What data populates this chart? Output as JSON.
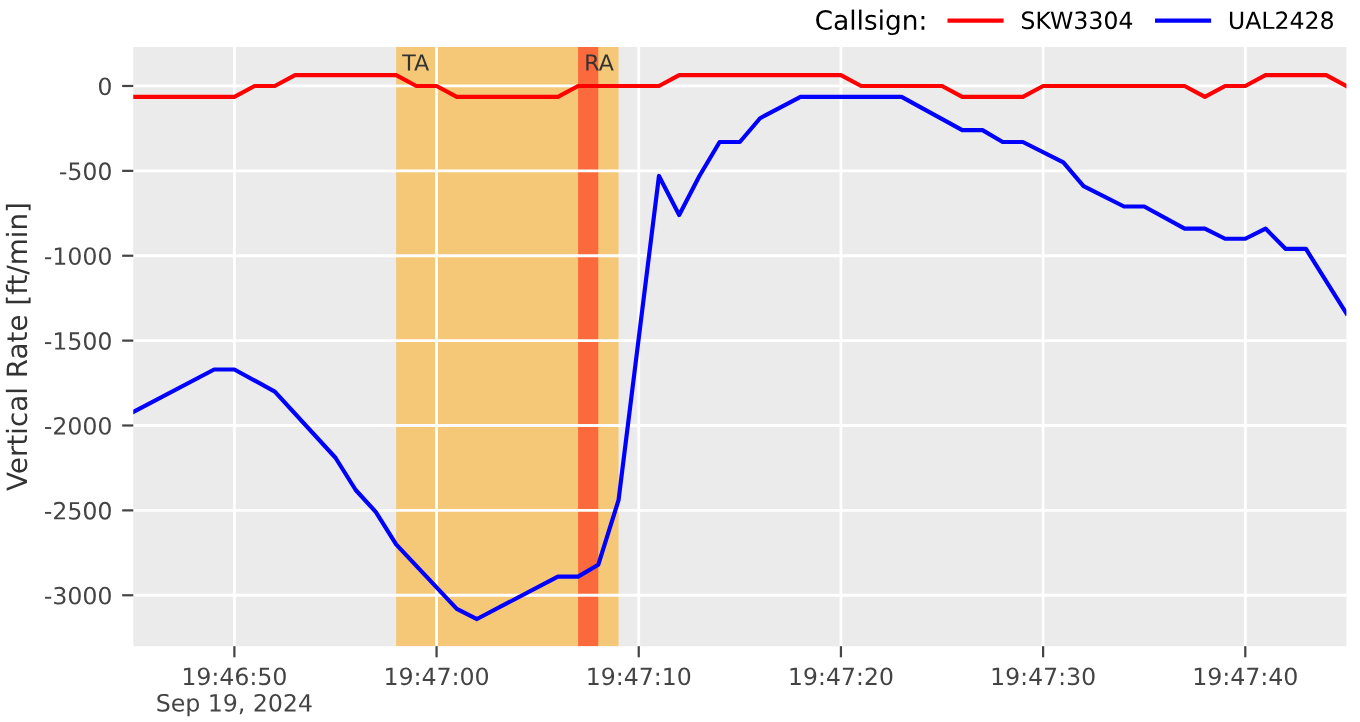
{
  "chart_data": {
    "type": "line",
    "ylabel": "Vertical Rate [ft/min]",
    "legend_title": "Callsign:",
    "legend": "top right",
    "grid": true,
    "line_style": "solid",
    "marker": "none",
    "xlim": [
      "2024-09-19T19:46:45",
      "2024-09-19T19:47:45"
    ],
    "xticks": [
      {
        "value": "2024-09-19T19:46:50",
        "label": "19:46:50\nSep 19, 2024"
      },
      {
        "value": "2024-09-19T19:47:00",
        "label": "19:47:00"
      },
      {
        "value": "2024-09-19T19:47:10",
        "label": "19:47:10"
      },
      {
        "value": "2024-09-19T19:47:20",
        "label": "19:47:20"
      },
      {
        "value": "2024-09-19T19:47:30",
        "label": "19:47:30"
      },
      {
        "value": "2024-09-19T19:47:40",
        "label": "19:47:40"
      }
    ],
    "ylim": [
      -3300,
      230
    ],
    "yticks": [
      -3000,
      -2500,
      -2000,
      -1500,
      -1000,
      -500,
      0
    ],
    "bands": [
      {
        "axis": "x",
        "from": "2024-09-19T19:46:58",
        "to": "2024-09-19T19:47:09",
        "label": "TA",
        "color": "#f5c878"
      },
      {
        "axis": "x",
        "from": "2024-09-19T19:47:07",
        "to": "2024-09-19T19:47:08",
        "label": "RA",
        "color": "#fb6a3c"
      }
    ],
    "series": [
      {
        "name": "SKW3304",
        "color": "#ff0000",
        "x": [
          "2024-09-19T19:46:45",
          "2024-09-19T19:46:50",
          "2024-09-19T19:46:51",
          "2024-09-19T19:46:52",
          "2024-09-19T19:46:53",
          "2024-09-19T19:46:58",
          "2024-09-19T19:46:59",
          "2024-09-19T19:47:00",
          "2024-09-19T19:47:01",
          "2024-09-19T19:47:06",
          "2024-09-19T19:47:07",
          "2024-09-19T19:47:11",
          "2024-09-19T19:47:12",
          "2024-09-19T19:47:20",
          "2024-09-19T19:47:21",
          "2024-09-19T19:47:25",
          "2024-09-19T19:47:26",
          "2024-09-19T19:47:29",
          "2024-09-19T19:47:30",
          "2024-09-19T19:47:37",
          "2024-09-19T19:47:38",
          "2024-09-19T19:47:39",
          "2024-09-19T19:47:40",
          "2024-09-19T19:47:41",
          "2024-09-19T19:47:44",
          "2024-09-19T19:47:45"
        ],
        "values": [
          -64,
          -64,
          0,
          0,
          64,
          64,
          0,
          0,
          -64,
          -64,
          0,
          0,
          64,
          64,
          0,
          0,
          -64,
          -64,
          0,
          0,
          -64,
          0,
          0,
          64,
          64,
          0
        ]
      },
      {
        "name": "UAL2428",
        "color": "#0000ff",
        "x": [
          "2024-09-19T19:46:45",
          "2024-09-19T19:46:49",
          "2024-09-19T19:46:50",
          "2024-09-19T19:46:52",
          "2024-09-19T19:46:55",
          "2024-09-19T19:46:56",
          "2024-09-19T19:46:57",
          "2024-09-19T19:46:58",
          "2024-09-19T19:47:01",
          "2024-09-19T19:47:02",
          "2024-09-19T19:47:06",
          "2024-09-19T19:47:07",
          "2024-09-19T19:47:08",
          "2024-09-19T19:47:09",
          "2024-09-19T19:47:11",
          "2024-09-19T19:47:12",
          "2024-09-19T19:47:13",
          "2024-09-19T19:47:14",
          "2024-09-19T19:47:15",
          "2024-09-19T19:47:16",
          "2024-09-19T19:47:18",
          "2024-09-19T19:47:23",
          "2024-09-19T19:47:26",
          "2024-09-19T19:47:27",
          "2024-09-19T19:47:28",
          "2024-09-19T19:47:29",
          "2024-09-19T19:47:31",
          "2024-09-19T19:47:32",
          "2024-09-19T19:47:34",
          "2024-09-19T19:47:35",
          "2024-09-19T19:47:37",
          "2024-09-19T19:47:38",
          "2024-09-19T19:47:39",
          "2024-09-19T19:47:40",
          "2024-09-19T19:47:41",
          "2024-09-19T19:47:42",
          "2024-09-19T19:47:43",
          "2024-09-19T19:47:45"
        ],
        "values": [
          -1920,
          -1670,
          -1670,
          -1800,
          -2190,
          -2380,
          -2510,
          -2700,
          -3080,
          -3140,
          -2890,
          -2890,
          -2820,
          -2440,
          -530,
          -760,
          -530,
          -330,
          -330,
          -190,
          -64,
          -64,
          -260,
          -260,
          -330,
          -330,
          -450,
          -590,
          -710,
          -710,
          -840,
          -840,
          -900,
          -900,
          -840,
          -960,
          -960,
          -1340
        ]
      }
    ]
  }
}
